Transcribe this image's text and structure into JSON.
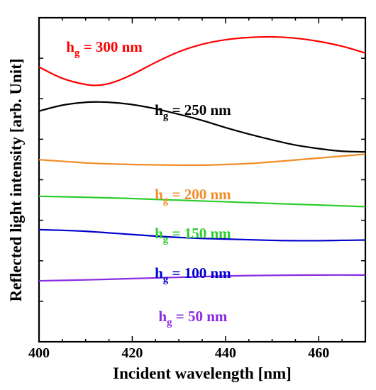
{
  "chart_data": {
    "type": "line",
    "xlabel": "Incident wavelength [nm]",
    "ylabel": "Reflected light intensity [arb. Unit]",
    "xlim": [
      400,
      470
    ],
    "ylim": [
      0,
      1
    ],
    "x_ticks": [
      "400",
      "420",
      "440",
      "460"
    ],
    "x_tick_values": [
      400,
      420,
      440,
      460
    ],
    "y_tick_labels_shown": false,
    "grid": false,
    "series": [
      {
        "name_prefix": "h",
        "name_sub": "g",
        "name_suffix": " = 300 nm",
        "color": "#ff0000",
        "x": [
          400,
          405,
          410,
          413,
          416,
          420,
          425,
          430,
          435,
          440,
          445,
          450,
          455,
          460,
          465,
          470
        ],
        "y": [
          0.848,
          0.813,
          0.794,
          0.792,
          0.801,
          0.825,
          0.862,
          0.895,
          0.918,
          0.932,
          0.939,
          0.941,
          0.937,
          0.927,
          0.912,
          0.891
        ]
      },
      {
        "name_prefix": "h",
        "name_sub": "g",
        "name_suffix": " = 250 nm",
        "color": "#000000",
        "x": [
          400,
          405,
          410,
          413,
          416,
          420,
          425,
          430,
          435,
          440,
          445,
          450,
          455,
          460,
          465,
          470
        ],
        "y": [
          0.712,
          0.73,
          0.739,
          0.74,
          0.738,
          0.732,
          0.719,
          0.702,
          0.683,
          0.661,
          0.641,
          0.623,
          0.607,
          0.596,
          0.588,
          0.586
        ]
      },
      {
        "name_prefix": "h",
        "name_sub": "g",
        "name_suffix": " = 200 nm",
        "color": "#f28c28",
        "x": [
          400,
          405,
          410,
          415,
          420,
          425,
          430,
          435,
          440,
          445,
          450,
          455,
          460,
          465,
          470
        ],
        "y": [
          0.562,
          0.557,
          0.552,
          0.549,
          0.547,
          0.546,
          0.545,
          0.545,
          0.547,
          0.55,
          0.555,
          0.561,
          0.567,
          0.573,
          0.579
        ]
      },
      {
        "name_prefix": "h",
        "name_sub": "g",
        "name_suffix": " = 150 nm",
        "color": "#2ccd2c",
        "x": [
          400,
          410,
          420,
          430,
          440,
          450,
          460,
          470
        ],
        "y": [
          0.449,
          0.446,
          0.442,
          0.437,
          0.432,
          0.427,
          0.422,
          0.417
        ]
      },
      {
        "name_prefix": "h",
        "name_sub": "g",
        "name_suffix": " = 100 nm",
        "color": "#0000cc",
        "x": [
          400,
          405,
          410,
          415,
          420,
          425,
          430,
          435,
          440,
          445,
          450,
          455,
          460,
          465,
          470
        ],
        "y": [
          0.346,
          0.344,
          0.341,
          0.336,
          0.331,
          0.326,
          0.322,
          0.319,
          0.317,
          0.315,
          0.313,
          0.312,
          0.312,
          0.313,
          0.314
        ]
      },
      {
        "name_prefix": "h",
        "name_sub": "g",
        "name_suffix": " = 50 nm",
        "color": "#8a2be2",
        "x": [
          400,
          410,
          420,
          430,
          440,
          450,
          460,
          470
        ],
        "y": [
          0.188,
          0.191,
          0.195,
          0.199,
          0.203,
          0.205,
          0.206,
          0.206
        ]
      }
    ]
  }
}
